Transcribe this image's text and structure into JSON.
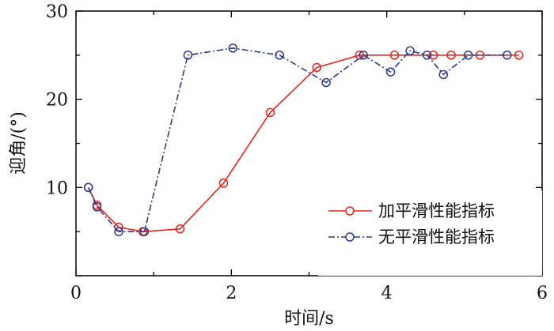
{
  "chart_data": {
    "type": "line",
    "xlabel": "时间/s",
    "ylabel": "迎角/(°)",
    "xlim": [
      0,
      6
    ],
    "ylim": [
      0,
      30
    ],
    "x_ticks": [
      "0",
      "2",
      "4",
      "6"
    ],
    "y_ticks": [
      "10",
      "20",
      "30"
    ],
    "grid": false,
    "legend_position": "lower-right",
    "series": [
      {
        "name": "加平滑性能指标",
        "color": "#e8231f",
        "line_style": "solid",
        "marker": "open-circle",
        "points": [
          [
            0.16,
            10.0
          ],
          [
            0.27,
            8.0
          ],
          [
            0.55,
            5.5
          ],
          [
            0.86,
            5.0
          ],
          [
            1.34,
            5.3
          ],
          [
            1.9,
            10.5
          ],
          [
            2.5,
            18.5
          ],
          [
            3.1,
            23.6
          ],
          [
            3.65,
            25.0
          ],
          [
            4.1,
            25.0
          ],
          [
            4.6,
            25.0
          ],
          [
            4.83,
            25.0
          ],
          [
            5.2,
            25.0
          ],
          [
            5.7,
            25.0
          ]
        ]
      },
      {
        "name": "无平滑性能指标",
        "color": "#2a3a8c",
        "line_style": "dash-dot",
        "marker": "open-circle",
        "points": [
          [
            0.16,
            10.0
          ],
          [
            0.27,
            7.8
          ],
          [
            0.55,
            5.0
          ],
          [
            0.88,
            5.0
          ],
          [
            1.44,
            25.0
          ],
          [
            2.02,
            25.8
          ],
          [
            2.62,
            25.0
          ],
          [
            3.22,
            21.9
          ],
          [
            3.7,
            25.0
          ],
          [
            4.05,
            23.1
          ],
          [
            4.3,
            25.5
          ],
          [
            4.52,
            25.0
          ],
          [
            4.73,
            22.8
          ],
          [
            5.05,
            25.0
          ],
          [
            5.55,
            25.0
          ]
        ]
      }
    ]
  }
}
